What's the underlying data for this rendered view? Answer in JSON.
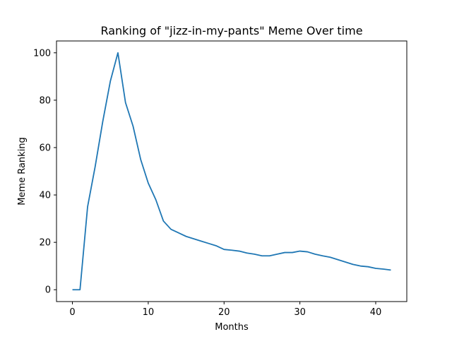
{
  "chart_data": {
    "type": "line",
    "title": "Ranking of \"jizz-in-my-pants\" Meme Over time",
    "xlabel": "Months",
    "ylabel": "Meme Ranking",
    "xlim": [
      -2.1,
      44.1
    ],
    "ylim": [
      -5,
      105
    ],
    "xticks": [
      0,
      10,
      20,
      30,
      40
    ],
    "yticks": [
      0,
      20,
      40,
      60,
      80,
      100
    ],
    "grid": false,
    "color": "#1f77b4",
    "series": [
      {
        "x": [
          0,
          1,
          2,
          3,
          4,
          5,
          6,
          7,
          8,
          9,
          10,
          11,
          12,
          13,
          14,
          15,
          16,
          17,
          18,
          19,
          20,
          21,
          22,
          23,
          24,
          25,
          26,
          27,
          28,
          29,
          30,
          31,
          32,
          33,
          34,
          35,
          36,
          37,
          38,
          39,
          40,
          41,
          42
        ],
        "values": [
          0,
          0,
          35,
          52,
          71,
          88,
          100,
          79,
          69,
          55,
          45,
          38,
          29,
          25.5,
          24,
          22.5,
          21.5,
          20.5,
          19.5,
          18.5,
          17,
          16.7,
          16.3,
          15.5,
          15,
          14.3,
          14.3,
          15,
          15.7,
          15.7,
          16.3,
          16,
          15,
          14.3,
          13.7,
          12.7,
          11.7,
          10.7,
          10,
          9.7,
          9,
          8.7,
          8.3
        ]
      }
    ]
  }
}
